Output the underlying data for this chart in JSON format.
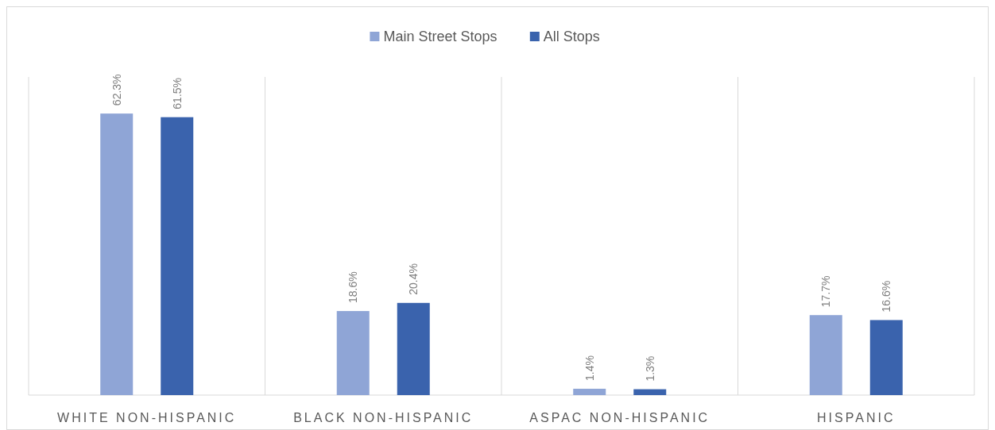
{
  "chart_data": {
    "type": "bar",
    "categories": [
      "WHITE NON-HISPANIC",
      "BLACK NON-HISPANIC",
      "ASPAC NON-HISPANIC",
      "HISPANIC"
    ],
    "series": [
      {
        "name": "Main Street Stops",
        "color": "#8fa5d6",
        "values": [
          62.3,
          18.6,
          1.4,
          17.7
        ],
        "value_labels": [
          "62.3%",
          "18.6%",
          "1.4%",
          "17.7%"
        ]
      },
      {
        "name": "All Stops",
        "color": "#3a63ad",
        "values": [
          61.5,
          20.4,
          1.3,
          16.6
        ],
        "value_labels": [
          "61.5%",
          "20.4%",
          "1.3%",
          "16.6%"
        ]
      }
    ],
    "legend": "top"
  }
}
